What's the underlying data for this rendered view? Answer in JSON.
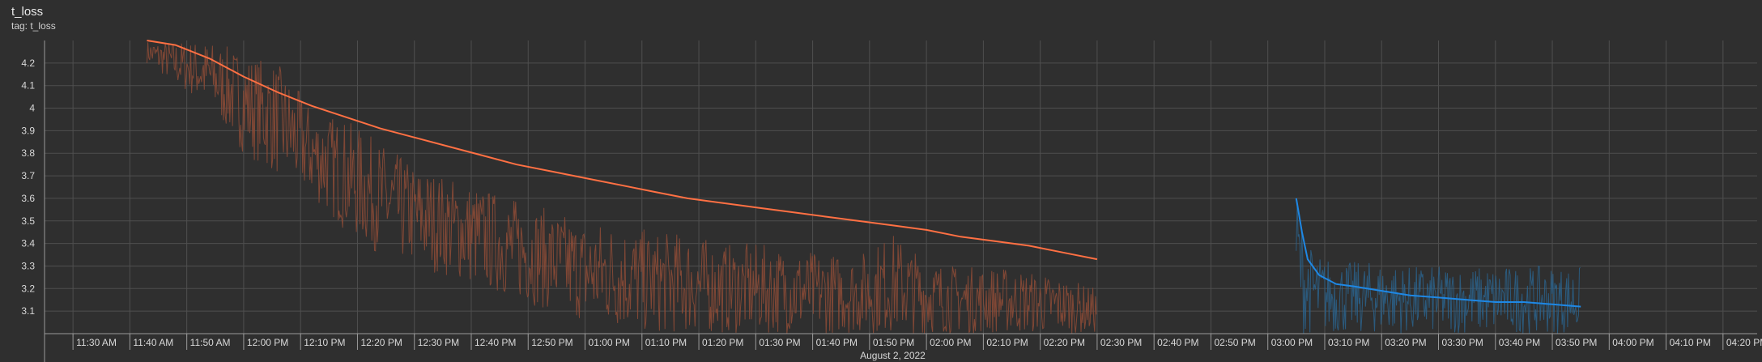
{
  "header": {
    "title": "t_loss",
    "subtitle": "tag: t_loss"
  },
  "chart_data": {
    "type": "line",
    "title": "t_loss",
    "xlabel": "August 2, 2022",
    "ylabel": "",
    "x_ticks": [
      "11:30 AM",
      "11:40 AM",
      "11:50 AM",
      "12:00 PM",
      "12:10 PM",
      "12:20 PM",
      "12:30 PM",
      "12:40 PM",
      "12:50 PM",
      "01:00 PM",
      "01:10 PM",
      "01:20 PM",
      "01:30 PM",
      "01:40 PM",
      "01:50 PM",
      "02:00 PM",
      "02:10 PM",
      "02:20 PM",
      "02:30 PM",
      "02:40 PM",
      "02:50 PM",
      "03:00 PM",
      "03:10 PM",
      "03:20 PM",
      "03:30 PM",
      "03:40 PM",
      "03:50 PM",
      "04:00 PM",
      "04:10 PM",
      "04:20 PM"
    ],
    "xlim": [
      "11:25 AM",
      "04:26 PM"
    ],
    "y_ticks": [
      3.1,
      3.2,
      3.3,
      3.4,
      3.5,
      3.6,
      3.7,
      3.8,
      3.9,
      4,
      4.1,
      4.2
    ],
    "ylim": [
      3.0,
      4.3
    ],
    "grid": true,
    "series": [
      {
        "color": "#ff7043",
        "raw_color": "#8a4a36",
        "time": [
          "11:43 AM",
          "11:48 AM",
          "11:54 AM",
          "12:00 PM",
          "12:06 PM",
          "12:12 PM",
          "12:18 PM",
          "12:24 PM",
          "12:30 PM",
          "12:36 PM",
          "12:42 PM",
          "12:48 PM",
          "12:54 PM",
          "01:00 PM",
          "01:06 PM",
          "01:12 PM",
          "01:18 PM",
          "01:24 PM",
          "01:30 PM",
          "01:36 PM",
          "01:42 PM",
          "01:48 PM",
          "01:54 PM",
          "02:00 PM",
          "02:06 PM",
          "02:12 PM",
          "02:18 PM",
          "02:24 PM",
          "02:30 PM"
        ],
        "smoothed": [
          4.3,
          4.28,
          4.22,
          4.14,
          4.07,
          4.01,
          3.96,
          3.91,
          3.87,
          3.83,
          3.79,
          3.75,
          3.72,
          3.69,
          3.66,
          3.63,
          3.6,
          3.58,
          3.56,
          3.54,
          3.52,
          3.5,
          3.48,
          3.46,
          3.43,
          3.41,
          3.39,
          3.36,
          3.33
        ],
        "raw_low": [
          4.2,
          4.1,
          4.0,
          3.8,
          3.7,
          3.6,
          3.45,
          3.35,
          3.3,
          3.25,
          3.2,
          3.15,
          3.1,
          3.05,
          3.02,
          3.0,
          3.0,
          3.0,
          3.0,
          3.0,
          3.0,
          3.0,
          3.0,
          3.0,
          3.0,
          3.0,
          3.0,
          3.0,
          3.0
        ],
        "raw_high": [
          4.3,
          4.3,
          4.3,
          4.25,
          4.2,
          4.0,
          3.95,
          3.85,
          3.75,
          3.7,
          3.65,
          3.6,
          3.55,
          3.5,
          3.5,
          3.45,
          3.45,
          3.4,
          3.4,
          3.38,
          3.36,
          3.35,
          3.45,
          3.33,
          3.3,
          3.3,
          3.28,
          3.25,
          3.2
        ]
      },
      {
        "color": "#1e88e5",
        "raw_color": "#2b5f86",
        "time": [
          "03:05 PM",
          "03:06 PM",
          "03:07 PM",
          "03:09 PM",
          "03:12 PM",
          "03:15 PM",
          "03:20 PM",
          "03:25 PM",
          "03:30 PM",
          "03:35 PM",
          "03:40 PM",
          "03:45 PM",
          "03:50 PM",
          "03:55 PM"
        ],
        "smoothed": [
          3.6,
          3.45,
          3.33,
          3.26,
          3.22,
          3.21,
          3.19,
          3.17,
          3.16,
          3.15,
          3.14,
          3.14,
          3.13,
          3.12
        ],
        "raw_low": [
          3.2,
          3.0,
          3.0,
          3.0,
          3.0,
          3.0,
          3.0,
          3.0,
          3.0,
          3.0,
          3.0,
          3.0,
          3.0,
          3.0
        ],
        "raw_high": [
          3.65,
          3.5,
          3.4,
          3.35,
          3.33,
          3.32,
          3.32,
          3.3,
          3.3,
          3.3,
          3.3,
          3.3,
          3.3,
          3.3
        ]
      }
    ]
  }
}
